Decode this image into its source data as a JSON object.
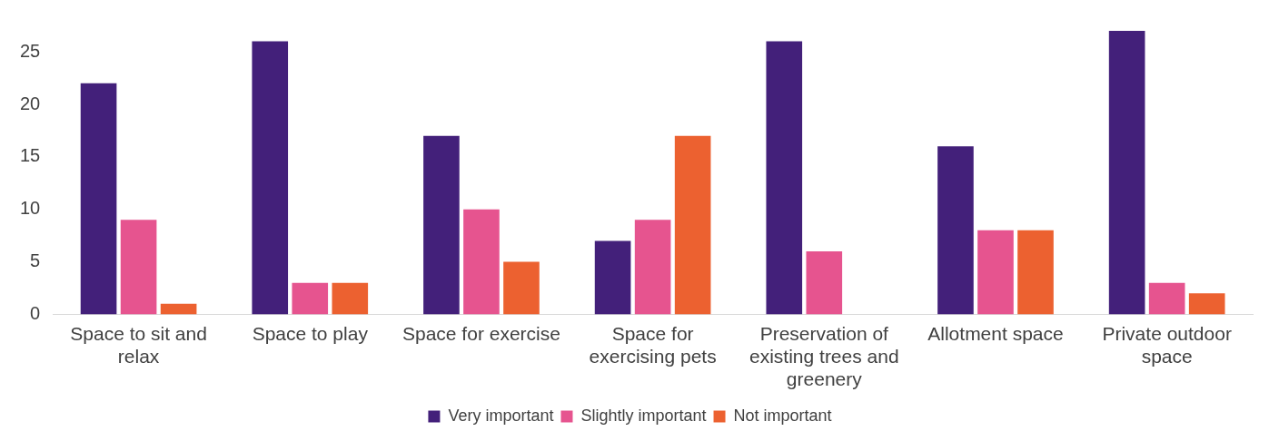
{
  "chart_data": {
    "type": "bar",
    "categories": [
      "Space to sit and relax",
      "Space to play",
      "Space for exercise",
      "Space for exercising pets",
      "Preservation of existing trees and greenery",
      "Allotment space",
      "Private outdoor space"
    ],
    "series": [
      {
        "name": "Very important",
        "color": "#43207a",
        "values": [
          22,
          26,
          17,
          7,
          26,
          16,
          27
        ]
      },
      {
        "name": "Slightly important",
        "color": "#e6548f",
        "values": [
          9,
          3,
          10,
          9,
          6,
          8,
          3
        ]
      },
      {
        "name": "Not important",
        "color": "#ec6130",
        "values": [
          1,
          3,
          5,
          17,
          0,
          8,
          2
        ]
      }
    ],
    "ylim": [
      0,
      27
    ],
    "yticks": [
      0,
      5,
      10,
      15,
      20,
      25
    ],
    "grid": false,
    "legend": "bottom"
  }
}
